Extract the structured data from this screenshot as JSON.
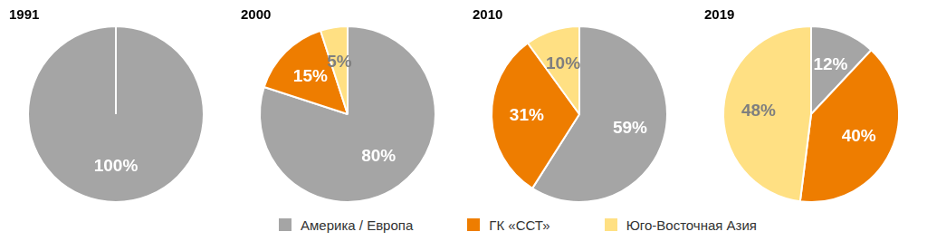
{
  "chart_data": [
    {
      "type": "pie",
      "title": "1991",
      "categories": [
        "Америка / Европа"
      ],
      "values": [
        100
      ],
      "value_labels": [
        "100%"
      ],
      "colors": [
        "#a5a5a5"
      ],
      "data_labels": true,
      "legend": "bottom"
    },
    {
      "type": "pie",
      "title": "2000",
      "categories": [
        "Америка / Европа",
        "ГК «ССТ»",
        "Юго-Восточная Азия"
      ],
      "values": [
        80,
        15,
        5
      ],
      "value_labels": [
        "80%",
        "15%",
        "5%"
      ],
      "colors": [
        "#a5a5a5",
        "#ee7d00",
        "#ffe083"
      ],
      "data_labels": true,
      "legend": "bottom"
    },
    {
      "type": "pie",
      "title": "2010",
      "categories": [
        "Америка / Европа",
        "ГК «ССТ»",
        "Юго-Восточная Азия"
      ],
      "values": [
        59,
        31,
        10
      ],
      "value_labels": [
        "59%",
        "31%",
        "10%"
      ],
      "colors": [
        "#a5a5a5",
        "#ee7d00",
        "#ffe083"
      ],
      "data_labels": true,
      "legend": "bottom"
    },
    {
      "type": "pie",
      "title": "2019",
      "categories": [
        "Америка / Европа",
        "ГК «ССТ»",
        "Юго-Восточная Азия"
      ],
      "values": [
        12,
        40,
        48
      ],
      "value_labels": [
        "12%",
        "40%",
        "48%"
      ],
      "colors": [
        "#a5a5a5",
        "#ee7d00",
        "#ffe083"
      ],
      "data_labels": true,
      "legend": "bottom"
    }
  ]
}
